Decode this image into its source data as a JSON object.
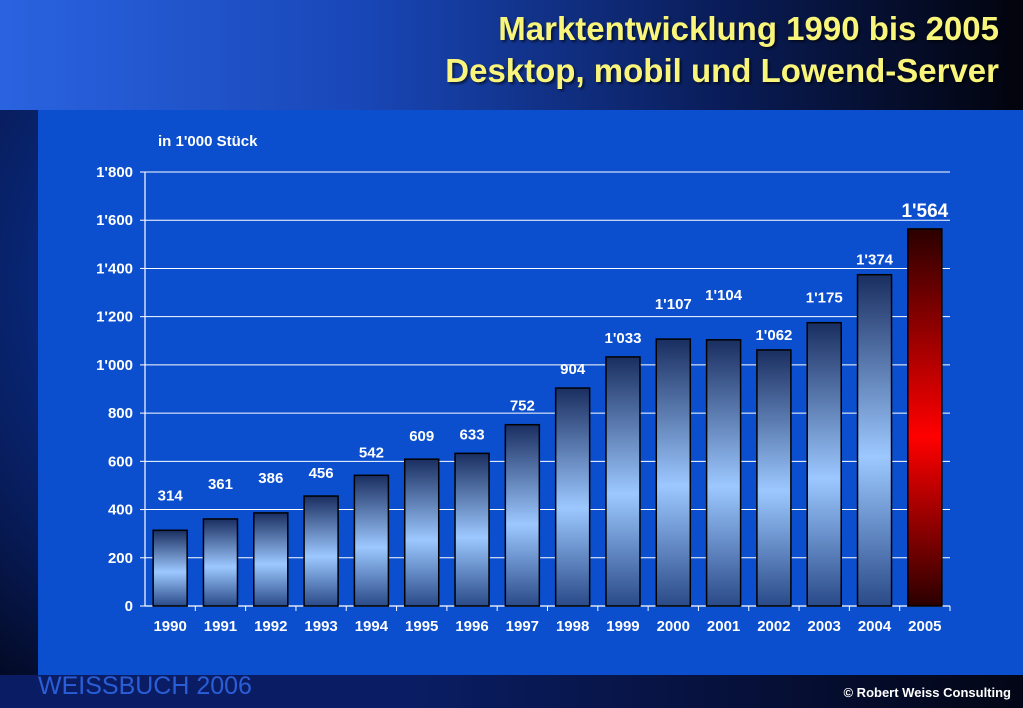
{
  "slide": {
    "title_line1": "Marktentwicklung 1990 bis 2005",
    "title_line2": "Desktop, mobil und Lowend-Server",
    "footer_left": "WEISSBUCH  2006",
    "footer_right": "© Robert Weiss Consulting"
  },
  "colors": {
    "title": "#f8f57a",
    "bar_blue_light": "#9cc8ff",
    "bar_blue_dark": "#1a2e60",
    "bar_highlight_red": "#ff0000",
    "bar_highlight_dark": "#2a0000"
  },
  "chart_data": {
    "type": "bar",
    "ylabel": "in 1'000 Stück",
    "xlabel": "",
    "ylim": [
      0,
      1800
    ],
    "y_ticks": [
      0,
      200,
      400,
      600,
      800,
      1000,
      1200,
      1400,
      1600,
      1800
    ],
    "y_tick_labels": [
      "0",
      "200",
      "400",
      "600",
      "800",
      "1'000",
      "1'200",
      "1'400",
      "1'600",
      "1'800"
    ],
    "categories": [
      "1990",
      "1991",
      "1992",
      "1993",
      "1994",
      "1995",
      "1996",
      "1997",
      "1998",
      "1999",
      "2000",
      "2001",
      "2002",
      "2003",
      "2004",
      "2005"
    ],
    "values": [
      314,
      361,
      386,
      456,
      542,
      609,
      633,
      752,
      904,
      1033,
      1107,
      1104,
      1062,
      1175,
      1374,
      1564
    ],
    "value_labels": [
      "314",
      "361",
      "386",
      "456",
      "542",
      "609",
      "633",
      "752",
      "904",
      "1'033",
      "1'107",
      "1'104",
      "1'062",
      "1'175",
      "1'374",
      "1'564"
    ],
    "highlight_category": "2005",
    "grid": true,
    "legend": "none"
  }
}
